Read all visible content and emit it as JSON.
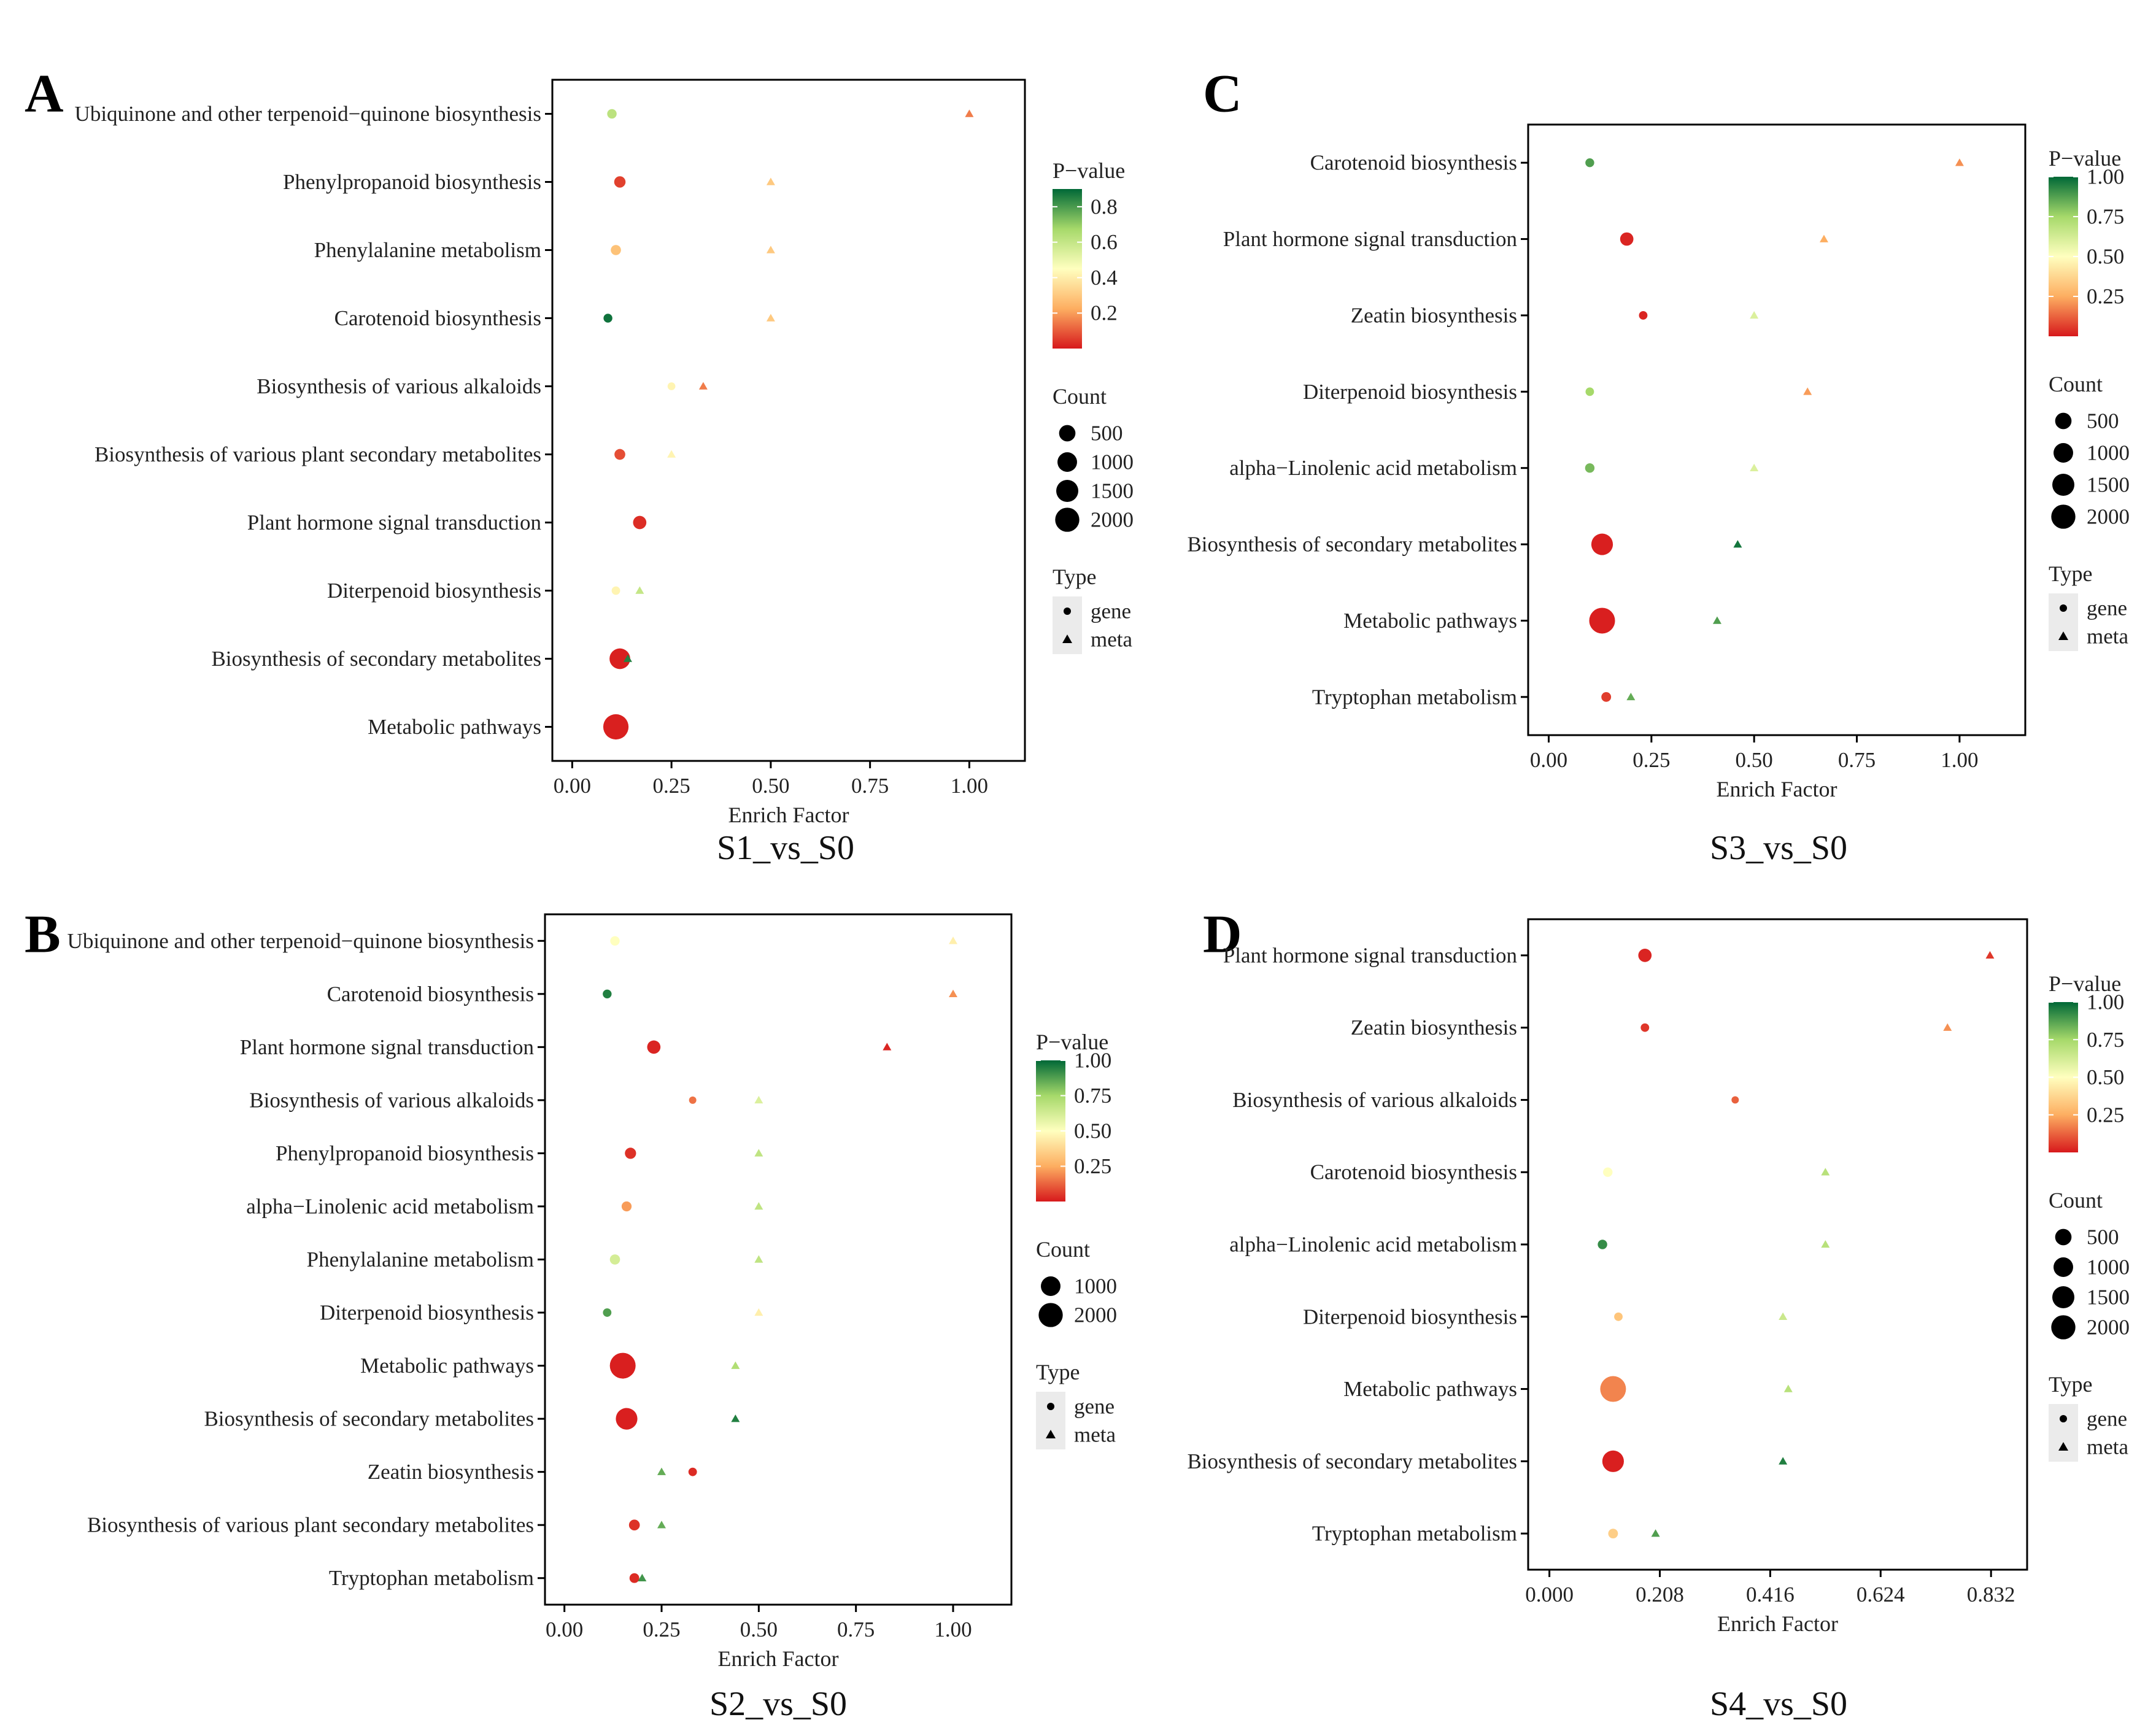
{
  "colors": {
    "scale": [
      "#D7191C",
      "#FDAE61",
      "#FFFFBF",
      "#A6D96A",
      "#006837"
    ],
    "axis": "#000000",
    "legend_key_bg": "#EBEBEB"
  },
  "legend_titles": {
    "pvalue": "P−value",
    "count": "Count",
    "type": "Type"
  },
  "type_labels": {
    "gene": "gene",
    "meta": "meta"
  },
  "chart_data": [
    {
      "panel": "A",
      "type": "scatter",
      "subtitle": "S1_vs_S0",
      "xlabel": "Enrich Factor",
      "xlim": [
        -0.05,
        1.14
      ],
      "xticks": [
        0,
        0.25,
        0.5,
        0.75,
        1.0
      ],
      "xtick_labels": [
        "0.00",
        "0.25",
        "0.50",
        "0.75",
        "1.00"
      ],
      "categories": [
        "Ubiquinone and other terpenoid−quinone biosynthesis",
        "Phenylpropanoid biosynthesis",
        "Phenylalanine metabolism",
        "Carotenoid biosynthesis",
        "Biosynthesis of various alkaloids",
        "Biosynthesis of various plant secondary metabolites",
        "Plant hormone signal transduction",
        "Diterpenoid biosynthesis",
        "Biosynthesis of secondary metabolites",
        "Metabolic pathways"
      ],
      "pvalue_scale": {
        "min": 0.0,
        "max": 0.9,
        "ticks": [
          0.2,
          0.4,
          0.6,
          0.8
        ],
        "tick_labels": [
          "0.2",
          "0.4",
          "0.6",
          "0.8"
        ]
      },
      "count_legend": {
        "values": [
          500,
          1000,
          1500,
          2000
        ],
        "labels": [
          "500",
          "1000",
          "1500",
          "2000"
        ]
      },
      "points": [
        {
          "cat": "Ubiquinone and other terpenoid−quinone biosynthesis",
          "type": "gene",
          "x": 0.1,
          "p": 0.62,
          "count": 60
        },
        {
          "cat": "Ubiquinone and other terpenoid−quinone biosynthesis",
          "type": "meta",
          "x": 1.0,
          "p": 0.15,
          "count": 1
        },
        {
          "cat": "Phenylpropanoid biosynthesis",
          "type": "gene",
          "x": 0.12,
          "p": 0.06,
          "count": 150
        },
        {
          "cat": "Phenylpropanoid biosynthesis",
          "type": "meta",
          "x": 0.5,
          "p": 0.3,
          "count": 2
        },
        {
          "cat": "Phenylalanine metabolism",
          "type": "gene",
          "x": 0.11,
          "p": 0.28,
          "count": 90
        },
        {
          "cat": "Phenylalanine metabolism",
          "type": "meta",
          "x": 0.5,
          "p": 0.3,
          "count": 2
        },
        {
          "cat": "Carotenoid biosynthesis",
          "type": "gene",
          "x": 0.09,
          "p": 0.88,
          "count": 40
        },
        {
          "cat": "Carotenoid biosynthesis",
          "type": "meta",
          "x": 0.5,
          "p": 0.3,
          "count": 2
        },
        {
          "cat": "Biosynthesis of various alkaloids",
          "type": "gene",
          "x": 0.25,
          "p": 0.42,
          "count": 15
        },
        {
          "cat": "Biosynthesis of various alkaloids",
          "type": "meta",
          "x": 0.33,
          "p": 0.15,
          "count": 3
        },
        {
          "cat": "Biosynthesis of various plant secondary metabolites",
          "type": "gene",
          "x": 0.12,
          "p": 0.08,
          "count": 120
        },
        {
          "cat": "Biosynthesis of various plant secondary metabolites",
          "type": "meta",
          "x": 0.25,
          "p": 0.42,
          "count": 4
        },
        {
          "cat": "Plant hormone signal transduction",
          "type": "gene",
          "x": 0.17,
          "p": 0.03,
          "count": 280
        },
        {
          "cat": "Diterpenoid biosynthesis",
          "type": "gene",
          "x": 0.11,
          "p": 0.42,
          "count": 30
        },
        {
          "cat": "Diterpenoid biosynthesis",
          "type": "meta",
          "x": 0.17,
          "p": 0.6,
          "count": 6
        },
        {
          "cat": "Biosynthesis of secondary metabolites",
          "type": "gene",
          "x": 0.12,
          "p": 0.01,
          "count": 1150
        },
        {
          "cat": "Biosynthesis of secondary metabolites",
          "type": "meta",
          "x": 0.14,
          "p": 0.85,
          "count": 20
        },
        {
          "cat": "Metabolic pathways",
          "type": "gene",
          "x": 0.11,
          "p": 0.01,
          "count": 2000
        }
      ]
    },
    {
      "panel": "B",
      "type": "scatter",
      "subtitle": "S2_vs_S0",
      "xlabel": "Enrich Factor",
      "xlim": [
        -0.05,
        1.15
      ],
      "xticks": [
        0,
        0.25,
        0.5,
        0.75,
        1.0
      ],
      "xtick_labels": [
        "0.00",
        "0.25",
        "0.50",
        "0.75",
        "1.00"
      ],
      "categories": [
        "Ubiquinone and other terpenoid−quinone biosynthesis",
        "Carotenoid biosynthesis",
        "Plant hormone signal transduction",
        "Biosynthesis of various alkaloids",
        "Phenylpropanoid biosynthesis",
        "alpha−Linolenic acid metabolism",
        "Phenylalanine metabolism",
        "Diterpenoid biosynthesis",
        "Metabolic pathways",
        "Biosynthesis of secondary metabolites",
        "Zeatin biosynthesis",
        "Biosynthesis of various plant secondary metabolites",
        "Tryptophan metabolism"
      ],
      "pvalue_scale": {
        "min": 0.0,
        "max": 1.0,
        "ticks": [
          0.25,
          0.5,
          0.75,
          1.0
        ],
        "tick_labels": [
          "0.25",
          "0.50",
          "0.75",
          "1.00"
        ]
      },
      "count_legend": {
        "values": [
          1000,
          2000
        ],
        "labels": [
          "1000",
          "2000"
        ]
      },
      "points": [
        {
          "cat": "Ubiquinone and other terpenoid−quinone biosynthesis",
          "type": "gene",
          "x": 0.13,
          "p": 0.5,
          "count": 60
        },
        {
          "cat": "Ubiquinone and other terpenoid−quinone biosynthesis",
          "type": "meta",
          "x": 1.0,
          "p": 0.45,
          "count": 1
        },
        {
          "cat": "Carotenoid biosynthesis",
          "type": "gene",
          "x": 0.11,
          "p": 0.95,
          "count": 40
        },
        {
          "cat": "Carotenoid biosynthesis",
          "type": "meta",
          "x": 1.0,
          "p": 0.2,
          "count": 1
        },
        {
          "cat": "Plant hormone signal transduction",
          "type": "gene",
          "x": 0.23,
          "p": 0.02,
          "count": 280
        },
        {
          "cat": "Plant hormone signal transduction",
          "type": "meta",
          "x": 0.83,
          "p": 0.02,
          "count": 5
        },
        {
          "cat": "Biosynthesis of various alkaloids",
          "type": "gene",
          "x": 0.33,
          "p": 0.15,
          "count": 8
        },
        {
          "cat": "Biosynthesis of various alkaloids",
          "type": "meta",
          "x": 0.5,
          "p": 0.6,
          "count": 2
        },
        {
          "cat": "Phenylpropanoid biosynthesis",
          "type": "gene",
          "x": 0.17,
          "p": 0.04,
          "count": 140
        },
        {
          "cat": "Phenylpropanoid biosynthesis",
          "type": "meta",
          "x": 0.5,
          "p": 0.68,
          "count": 2
        },
        {
          "cat": "alpha−Linolenic acid metabolism",
          "type": "gene",
          "x": 0.16,
          "p": 0.22,
          "count": 80
        },
        {
          "cat": "alpha−Linolenic acid metabolism",
          "type": "meta",
          "x": 0.5,
          "p": 0.68,
          "count": 2
        },
        {
          "cat": "Phenylalanine metabolism",
          "type": "gene",
          "x": 0.13,
          "p": 0.62,
          "count": 90
        },
        {
          "cat": "Phenylalanine metabolism",
          "type": "meta",
          "x": 0.5,
          "p": 0.68,
          "count": 2
        },
        {
          "cat": "Diterpenoid biosynthesis",
          "type": "gene",
          "x": 0.11,
          "p": 0.88,
          "count": 30
        },
        {
          "cat": "Diterpenoid biosynthesis",
          "type": "meta",
          "x": 0.5,
          "p": 0.45,
          "count": 2
        },
        {
          "cat": "Metabolic pathways",
          "type": "gene",
          "x": 0.15,
          "p": 0.01,
          "count": 2100
        },
        {
          "cat": "Metabolic pathways",
          "type": "meta",
          "x": 0.44,
          "p": 0.72,
          "count": 30
        },
        {
          "cat": "Biosynthesis of secondary metabolites",
          "type": "gene",
          "x": 0.16,
          "p": 0.01,
          "count": 1300
        },
        {
          "cat": "Biosynthesis of secondary metabolites",
          "type": "meta",
          "x": 0.44,
          "p": 0.95,
          "count": 20
        },
        {
          "cat": "Zeatin biosynthesis",
          "type": "gene",
          "x": 0.33,
          "p": 0.03,
          "count": 30
        },
        {
          "cat": "Zeatin biosynthesis",
          "type": "meta",
          "x": 0.25,
          "p": 0.85,
          "count": 4
        },
        {
          "cat": "Biosynthesis of various plant secondary metabolites",
          "type": "gene",
          "x": 0.18,
          "p": 0.04,
          "count": 120
        },
        {
          "cat": "Biosynthesis of various plant secondary metabolites",
          "type": "meta",
          "x": 0.25,
          "p": 0.85,
          "count": 4
        },
        {
          "cat": "Tryptophan metabolism",
          "type": "gene",
          "x": 0.18,
          "p": 0.03,
          "count": 70
        },
        {
          "cat": "Tryptophan metabolism",
          "type": "meta",
          "x": 0.2,
          "p": 0.9,
          "count": 5
        }
      ]
    },
    {
      "panel": "C",
      "type": "scatter",
      "subtitle": "S3_vs_S0",
      "xlabel": "Enrich Factor",
      "xlim": [
        -0.05,
        1.16
      ],
      "xticks": [
        0,
        0.25,
        0.5,
        0.75,
        1.0
      ],
      "xtick_labels": [
        "0.00",
        "0.25",
        "0.50",
        "0.75",
        "1.00"
      ],
      "categories": [
        "Carotenoid biosynthesis",
        "Plant hormone signal transduction",
        "Zeatin biosynthesis",
        "Diterpenoid biosynthesis",
        "alpha−Linolenic acid metabolism",
        "Biosynthesis of secondary metabolites",
        "Metabolic pathways",
        "Tryptophan metabolism"
      ],
      "pvalue_scale": {
        "min": 0.0,
        "max": 1.0,
        "ticks": [
          0.25,
          0.5,
          0.75,
          1.0
        ],
        "tick_labels": [
          "0.25",
          "0.50",
          "0.75",
          "1.00"
        ]
      },
      "count_legend": {
        "values": [
          500,
          1000,
          1500,
          2000
        ],
        "labels": [
          "500",
          "1000",
          "1500",
          "2000"
        ]
      },
      "points": [
        {
          "cat": "Carotenoid biosynthesis",
          "type": "gene",
          "x": 0.1,
          "p": 0.88,
          "count": 40
        },
        {
          "cat": "Carotenoid biosynthesis",
          "type": "meta",
          "x": 1.0,
          "p": 0.2,
          "count": 1
        },
        {
          "cat": "Plant hormone signal transduction",
          "type": "gene",
          "x": 0.19,
          "p": 0.02,
          "count": 280
        },
        {
          "cat": "Plant hormone signal transduction",
          "type": "meta",
          "x": 0.67,
          "p": 0.25,
          "count": 3
        },
        {
          "cat": "Zeatin biosynthesis",
          "type": "gene",
          "x": 0.23,
          "p": 0.02,
          "count": 30
        },
        {
          "cat": "Zeatin biosynthesis",
          "type": "meta",
          "x": 0.5,
          "p": 0.6,
          "count": 2
        },
        {
          "cat": "Diterpenoid biosynthesis",
          "type": "gene",
          "x": 0.1,
          "p": 0.75,
          "count": 30
        },
        {
          "cat": "Diterpenoid biosynthesis",
          "type": "meta",
          "x": 0.63,
          "p": 0.22,
          "count": 3
        },
        {
          "cat": "alpha−Linolenic acid metabolism",
          "type": "gene",
          "x": 0.1,
          "p": 0.82,
          "count": 60
        },
        {
          "cat": "alpha−Linolenic acid metabolism",
          "type": "meta",
          "x": 0.5,
          "p": 0.6,
          "count": 2
        },
        {
          "cat": "Biosynthesis of secondary metabolites",
          "type": "gene",
          "x": 0.13,
          "p": 0.01,
          "count": 1300
        },
        {
          "cat": "Biosynthesis of secondary metabolites",
          "type": "meta",
          "x": 0.46,
          "p": 0.97,
          "count": 20
        },
        {
          "cat": "Metabolic pathways",
          "type": "gene",
          "x": 0.13,
          "p": 0.01,
          "count": 2100
        },
        {
          "cat": "Metabolic pathways",
          "type": "meta",
          "x": 0.41,
          "p": 0.88,
          "count": 30
        },
        {
          "cat": "Tryptophan metabolism",
          "type": "gene",
          "x": 0.14,
          "p": 0.06,
          "count": 70
        },
        {
          "cat": "Tryptophan metabolism",
          "type": "meta",
          "x": 0.2,
          "p": 0.85,
          "count": 5
        }
      ]
    },
    {
      "panel": "D",
      "type": "scatter",
      "subtitle": "S4_vs_S0",
      "xlabel": "Enrich Factor",
      "xlim": [
        -0.04,
        0.9
      ],
      "xticks": [
        0,
        0.208,
        0.416,
        0.624,
        0.832
      ],
      "xtick_labels": [
        "0.000",
        "0.208",
        "0.416",
        "0.624",
        "0.832"
      ],
      "categories": [
        "Plant hormone signal transduction",
        "Zeatin biosynthesis",
        "Biosynthesis of various alkaloids",
        "Carotenoid biosynthesis",
        "alpha−Linolenic acid metabolism",
        "Diterpenoid biosynthesis",
        "Metabolic pathways",
        "Biosynthesis of secondary metabolites",
        "Tryptophan metabolism"
      ],
      "pvalue_scale": {
        "min": 0.0,
        "max": 1.0,
        "ticks": [
          0.25,
          0.5,
          0.75,
          1.0
        ],
        "tick_labels": [
          "0.25",
          "0.50",
          "0.75",
          "1.00"
        ]
      },
      "count_legend": {
        "values": [
          500,
          1000,
          1500,
          2000
        ],
        "labels": [
          "500",
          "1000",
          "1500",
          "2000"
        ]
      },
      "points": [
        {
          "cat": "Plant hormone signal transduction",
          "type": "gene",
          "x": 0.18,
          "p": 0.02,
          "count": 280
        },
        {
          "cat": "Plant hormone signal transduction",
          "type": "meta",
          "x": 0.83,
          "p": 0.05,
          "count": 4
        },
        {
          "cat": "Zeatin biosynthesis",
          "type": "gene",
          "x": 0.18,
          "p": 0.05,
          "count": 30
        },
        {
          "cat": "Zeatin biosynthesis",
          "type": "meta",
          "x": 0.75,
          "p": 0.2,
          "count": 3
        },
        {
          "cat": "Biosynthesis of various alkaloids",
          "type": "gene",
          "x": 0.35,
          "p": 0.12,
          "count": 8
        },
        {
          "cat": "Carotenoid biosynthesis",
          "type": "gene",
          "x": 0.11,
          "p": 0.5,
          "count": 60
        },
        {
          "cat": "Carotenoid biosynthesis",
          "type": "meta",
          "x": 0.52,
          "p": 0.7,
          "count": 2
        },
        {
          "cat": "alpha−Linolenic acid metabolism",
          "type": "gene",
          "x": 0.1,
          "p": 0.92,
          "count": 60
        },
        {
          "cat": "alpha−Linolenic acid metabolism",
          "type": "meta",
          "x": 0.52,
          "p": 0.7,
          "count": 2
        },
        {
          "cat": "Diterpenoid biosynthesis",
          "type": "gene",
          "x": 0.13,
          "p": 0.32,
          "count": 30
        },
        {
          "cat": "Diterpenoid biosynthesis",
          "type": "meta",
          "x": 0.44,
          "p": 0.65,
          "count": 4
        },
        {
          "cat": "Metabolic pathways",
          "type": "gene",
          "x": 0.12,
          "p": 0.18,
          "count": 2100
        },
        {
          "cat": "Metabolic pathways",
          "type": "meta",
          "x": 0.45,
          "p": 0.7,
          "count": 30
        },
        {
          "cat": "Biosynthesis of secondary metabolites",
          "type": "gene",
          "x": 0.12,
          "p": 0.01,
          "count": 1300
        },
        {
          "cat": "Biosynthesis of secondary metabolites",
          "type": "meta",
          "x": 0.44,
          "p": 0.95,
          "count": 20
        },
        {
          "cat": "Tryptophan metabolism",
          "type": "gene",
          "x": 0.12,
          "p": 0.35,
          "count": 70
        },
        {
          "cat": "Tryptophan metabolism",
          "type": "meta",
          "x": 0.2,
          "p": 0.88,
          "count": 5
        }
      ]
    }
  ]
}
